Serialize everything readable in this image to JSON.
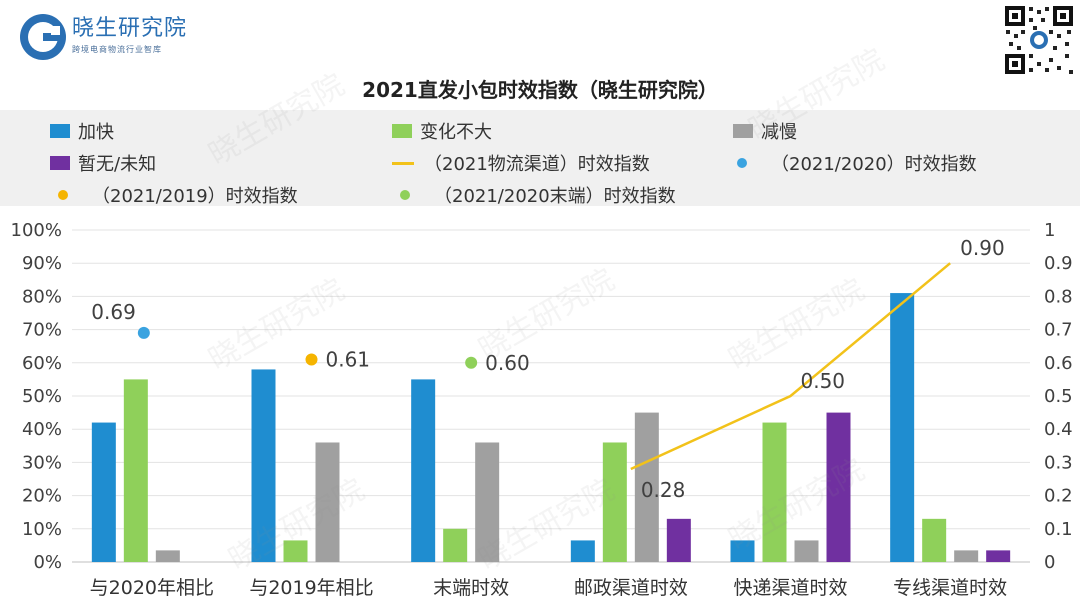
{
  "header": {
    "brand_name": "晓生研究院",
    "brand_sub": "跨境电商物流行业智库"
  },
  "legend": {
    "items": [
      {
        "label": "加快",
        "type": "bar",
        "color": "#1f8dd0"
      },
      {
        "label": "变化不大",
        "type": "bar",
        "color": "#8fd05a"
      },
      {
        "label": "减慢",
        "type": "bar",
        "color": "#a0a0a0"
      },
      {
        "label": "暂无/未知",
        "type": "bar",
        "color": "#7030a0"
      },
      {
        "label": "（2021物流渠道）时效指数",
        "type": "line",
        "color": "#f2c21a"
      },
      {
        "label": "（2021/2020）时效指数",
        "type": "dot",
        "color": "#3aa3e0"
      },
      {
        "label": "（2021/2019）时效指数",
        "type": "dot",
        "color": "#f5b400"
      },
      {
        "label": "（2021/2020末端）时效指数",
        "type": "dot",
        "color": "#8fd05a"
      }
    ]
  },
  "chart_data": {
    "type": "bar",
    "title": "2021直发小包时效指数（晓生研究院）",
    "categories": [
      "与2020年相比",
      "与2019年相比",
      "末端时效",
      "邮政渠道时效",
      "快递渠道时效",
      "专线渠道时效"
    ],
    "series": [
      {
        "name": "加快",
        "type": "bar",
        "axis": "left",
        "color": "#1f8dd0",
        "values": [
          42,
          58,
          55,
          6.5,
          6.5,
          81
        ]
      },
      {
        "name": "变化不大",
        "type": "bar",
        "axis": "left",
        "color": "#8fd05a",
        "values": [
          55,
          6.5,
          10,
          36,
          42,
          13
        ]
      },
      {
        "name": "减慢",
        "type": "bar",
        "axis": "left",
        "color": "#a0a0a0",
        "values": [
          3.5,
          36,
          36,
          45,
          6.5,
          3.5
        ]
      },
      {
        "name": "暂无/未知",
        "type": "bar",
        "axis": "left",
        "color": "#7030a0",
        "values": [
          0,
          0,
          0,
          13,
          45,
          3.5
        ]
      },
      {
        "name": "（2021物流渠道）时效指数",
        "type": "line",
        "axis": "right",
        "color": "#f2c21a",
        "values": [
          null,
          null,
          null,
          0.28,
          0.5,
          0.9
        ],
        "labels": [
          "",
          "",
          "",
          "0.28",
          "0.50",
          "0.90"
        ]
      },
      {
        "name": "（2021/2020）时效指数",
        "type": "dot",
        "axis": "right",
        "color": "#3aa3e0",
        "category": 0,
        "value": 0.69,
        "label": "0.69"
      },
      {
        "name": "（2021/2019）时效指数",
        "type": "dot",
        "axis": "right",
        "color": "#f5b400",
        "category": 1,
        "value": 0.61,
        "label": "0.61"
      },
      {
        "name": "（2021/2020末端）时效指数",
        "type": "dot",
        "axis": "right",
        "color": "#8fd05a",
        "category": 2,
        "value": 0.6,
        "label": "0.60"
      }
    ],
    "y_left": {
      "min": 0,
      "max": 100,
      "step": 10,
      "ticks": [
        "0%",
        "10%",
        "20%",
        "30%",
        "40%",
        "50%",
        "60%",
        "70%",
        "80%",
        "90%",
        "100%"
      ]
    },
    "y_right": {
      "min": 0,
      "max": 1,
      "step": 0.1,
      "ticks": [
        "0",
        "0.1",
        "0.2",
        "0.3",
        "0.4",
        "0.5",
        "0.6",
        "0.7",
        "0.8",
        "0.9",
        "1"
      ]
    },
    "grid": true,
    "legend_position": "top"
  }
}
